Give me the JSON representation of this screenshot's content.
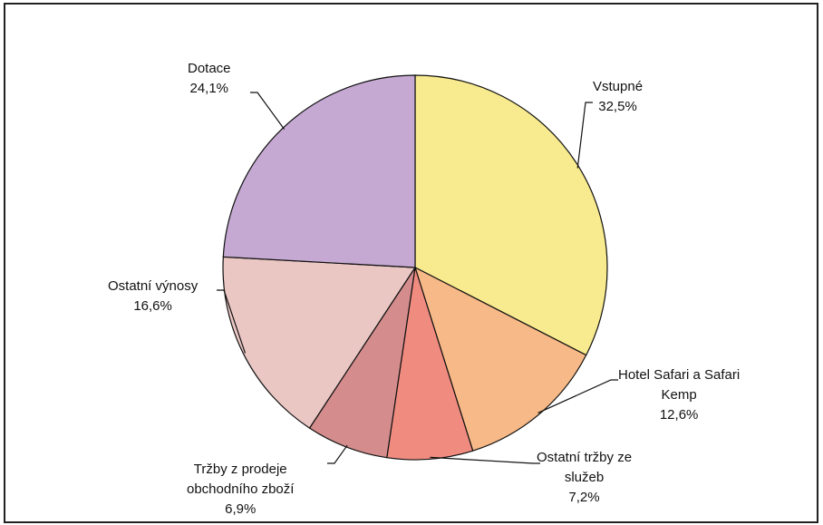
{
  "chart_data": {
    "type": "pie",
    "start_angle_deg": 0,
    "direction": "clockwise",
    "slices": [
      {
        "name": "Vstupné",
        "label_lines": [
          "Vstupné",
          "32,5%"
        ],
        "value": 32.5,
        "color": "#F8EA8E"
      },
      {
        "name": "Hotel Safari a Safari Kemp",
        "label_lines": [
          "Hotel Safari a Safari",
          "Kemp",
          "12,6%"
        ],
        "value": 12.6,
        "color": "#F6B987"
      },
      {
        "name": "Ostatní tržby ze služeb",
        "label_lines": [
          "Ostatní tržby ze",
          "služeb",
          "7,2%"
        ],
        "value": 7.2,
        "color": "#F08B80"
      },
      {
        "name": "Tržby z prodeje obchodního zboží",
        "label_lines": [
          "Tržby z prodeje",
          "obchodního zboží",
          "6,9%"
        ],
        "value": 6.9,
        "color": "#D48C8C"
      },
      {
        "name": "Ostatní výnosy",
        "label_lines": [
          "Ostatní výnosy",
          "16,6%"
        ],
        "value": 16.6,
        "color": "#EBC7C4"
      },
      {
        "name": "Dotace",
        "label_lines": [
          "Dotace",
          "24,1%"
        ],
        "value": 24.1,
        "color": "#C5A9D2"
      }
    ],
    "legend": "none",
    "title": ""
  }
}
